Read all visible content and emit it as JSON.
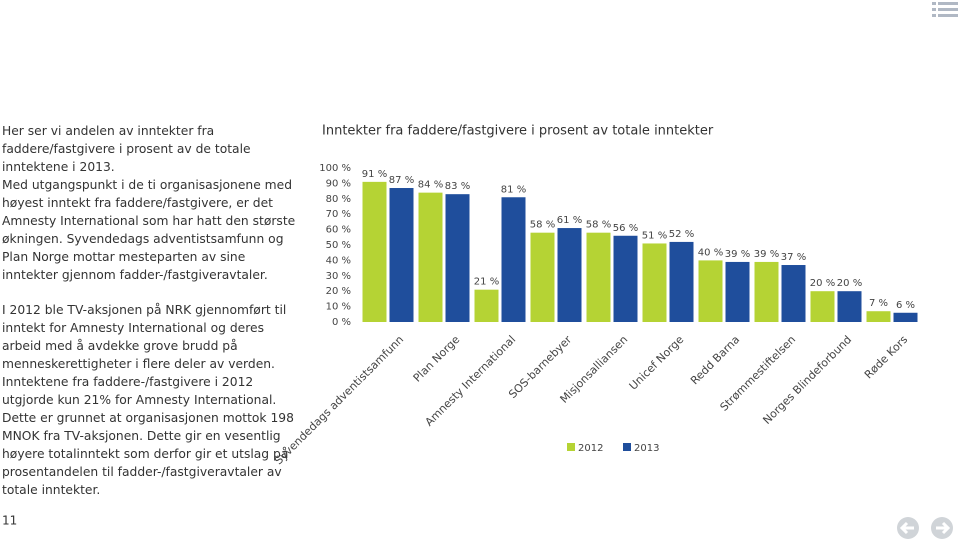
{
  "paragraphs": [
    "Her ser vi andelen av inntekter fra faddere/fastgivere i prosent av de totale inntektene i 2013.",
    "Med utgangspunkt i de ti organisasjonene med høyest inntekt fra faddere/fastgivere, er det Amnesty International som har hatt den største økningen. Syvendedags adventistsamfunn og Plan Norge mottar mesteparten av sine inntekter gjennom fadder-/fastgiveravtaler.",
    "I 2012 ble TV-aksjonen på NRK gjennomført til inntekt for Amnesty International og deres arbeid med å avdekke grove brudd på menneskerettigheter i flere deler av verden. Inntektene fra faddere-/fastgivere i 2012 utgjorde kun 21% for Amnesty International. Dette er grunnet at organisasjonen mottok 198 MNOK fra TV-aksjonen. Dette gir en vesentlig høyere totalinntekt som derfor gir et utslag på prosentandelen til fadder-/fastgiveravtaler av totale inntekter."
  ],
  "page_number": "11",
  "chart_data": {
    "type": "bar",
    "title": "Inntekter fra faddere/fastgivere i prosent av totale inntekter",
    "categories": [
      "Syvendedags adventistsamfunn",
      "Plan Norge",
      "Amnesty International",
      "SOS-barnebyer",
      "Misjonsalliansen",
      "Unicef Norge",
      "Redd Barna",
      "Strømmestiftelsen",
      "Norges Blindeforbund",
      "Røde Kors"
    ],
    "series": [
      {
        "name": "2012",
        "color": "#b5d334",
        "values": [
          91,
          84,
          21,
          58,
          58,
          51,
          40,
          39,
          20,
          7
        ],
        "value_labels": [
          "91 %",
          "84 %",
          "21 %",
          "58 %",
          "58 %",
          "51 %",
          "40 %",
          "39 %",
          "20 %",
          "7 %"
        ]
      },
      {
        "name": "2013",
        "color": "#1f4e9c",
        "values": [
          87,
          83,
          81,
          61,
          56,
          52,
          39,
          37,
          20,
          6
        ],
        "value_labels": [
          "87 %",
          "83 %",
          "81 %",
          "61 %",
          "56 %",
          "52 %",
          "39 %",
          "37 %",
          "20 %",
          "6 %"
        ]
      }
    ],
    "ylim": [
      0,
      100
    ],
    "yticks": [
      {
        "value": 0,
        "label": "0 %"
      },
      {
        "value": 10,
        "label": "10 %"
      },
      {
        "value": 20,
        "label": "20 %"
      },
      {
        "value": 30,
        "label": "30 %"
      },
      {
        "value": 40,
        "label": "40 %"
      },
      {
        "value": 50,
        "label": "50 %"
      },
      {
        "value": 60,
        "label": "60 %"
      },
      {
        "value": 70,
        "label": "70 %"
      },
      {
        "value": 80,
        "label": "80 %"
      },
      {
        "value": 90,
        "label": "90 %"
      },
      {
        "value": 100,
        "label": "100 %"
      }
    ]
  }
}
